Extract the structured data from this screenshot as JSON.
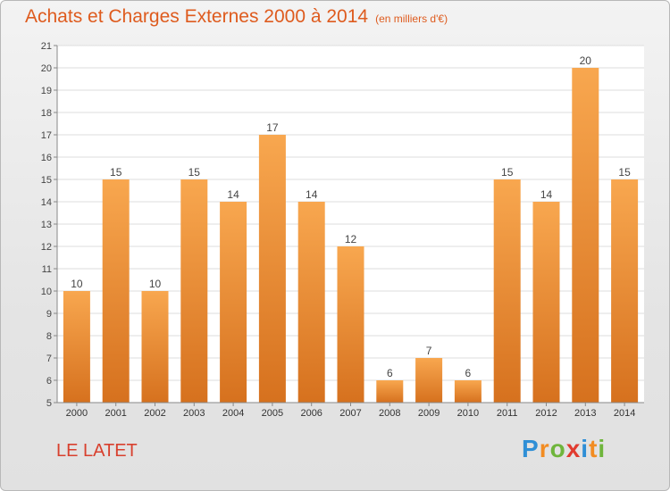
{
  "title": "Achats et Charges Externes 2000 à 2014",
  "subtitle": "(en milliers d'€)",
  "commune": "LE LATET",
  "logo": {
    "name": "Proxiti",
    "letters": [
      {
        "ch": "P",
        "color": "#2f8fd6"
      },
      {
        "ch": "r",
        "color": "#f28c22"
      },
      {
        "ch": "o",
        "color": "#6fb53c"
      },
      {
        "ch": "x",
        "color": "#e13b2f"
      },
      {
        "ch": "i",
        "color": "#2f8fd6"
      },
      {
        "ch": "t",
        "color": "#f28c22"
      },
      {
        "ch": "i",
        "color": "#6fb53c"
      }
    ]
  },
  "colors": {
    "bar_top": "#f8a74f",
    "bar_bottom": "#d6711e",
    "title": "#de5b1e"
  },
  "chart_data": {
    "type": "bar",
    "title": "Achats et Charges Externes 2000 à 2014",
    "subtitle": "(en milliers d'€)",
    "categories": [
      "2000",
      "2001",
      "2002",
      "2003",
      "2004",
      "2005",
      "2006",
      "2007",
      "2008",
      "2009",
      "2010",
      "2011",
      "2012",
      "2013",
      "2014"
    ],
    "values": [
      10,
      15,
      10,
      15,
      14,
      17,
      14,
      12,
      6,
      7,
      6,
      15,
      14,
      20,
      15
    ],
    "ylim": [
      5,
      21
    ],
    "yticks": [
      5,
      6,
      7,
      8,
      9,
      10,
      11,
      12,
      13,
      14,
      15,
      16,
      17,
      18,
      19,
      20,
      21
    ],
    "grid": true,
    "data_labels": true
  }
}
